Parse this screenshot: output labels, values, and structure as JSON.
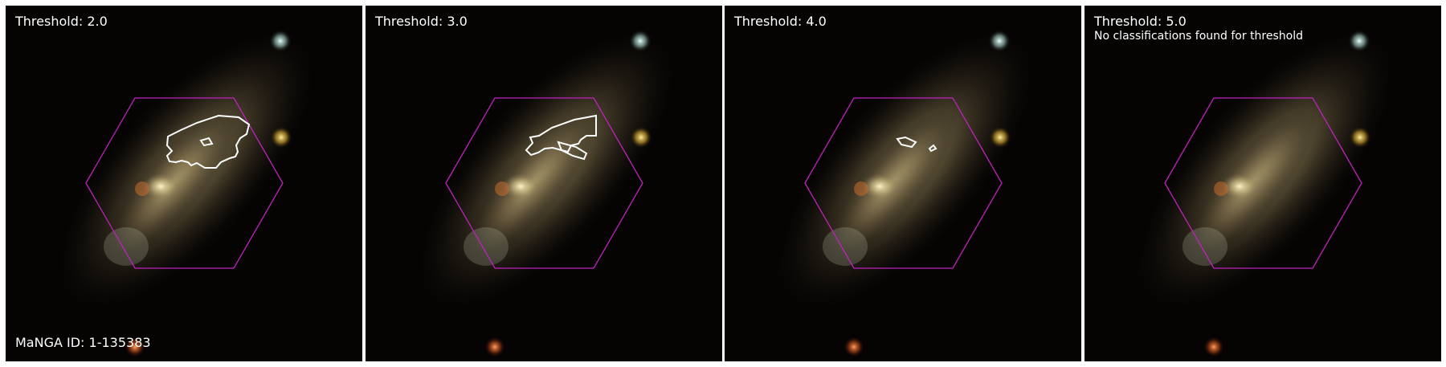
{
  "figure": {
    "panels": [
      {
        "threshold_label": "Threshold: 2.0",
        "note": "",
        "id_label": "MaNGA ID: 1-135383"
      },
      {
        "threshold_label": "Threshold: 3.0",
        "note": "",
        "id_label": ""
      },
      {
        "threshold_label": "Threshold: 4.0",
        "note": "",
        "id_label": ""
      },
      {
        "threshold_label": "Threshold: 5.0",
        "note": "No classifications found for threshold",
        "id_label": ""
      }
    ]
  },
  "colors": {
    "hexagon": "#c020c0",
    "contour": "#ffffff",
    "background": "#050403",
    "galaxy_core": "#f0e6b0",
    "galaxy_halo": "#8a7a55",
    "star_cyan": "#d8f0ee",
    "star_yellow": "#f0c040",
    "star_orange": "#e86020"
  }
}
